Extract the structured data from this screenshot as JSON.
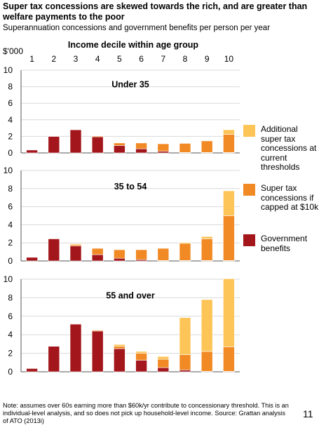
{
  "title": "Super tax concessions are skewed towards the rich, and are greater than welfare payments to the poor",
  "subtitle": "Superannuation concessions and government benefits per person per year",
  "unit_label": "$'000",
  "x_header": "Income decile within age group",
  "footnote": "Note: assumes over 60s earning more than $60k/yr contribute to concessionary threshold. This is an individual-level analysis, and so does not pick up household-level income. Source: Grattan analysis of ATO (2013i)",
  "page_number": "11",
  "colors": {
    "government_benefits": "#A3161B",
    "capped": "#F18A25",
    "additional": "#FDC457",
    "grid": "#d9d9d9",
    "axis": "#555555"
  },
  "legend": [
    {
      "label": "Additional super tax concessions at current thresholds",
      "color": "#FDC457"
    },
    {
      "label": "Super tax concessions if capped at $10k",
      "color": "#F18A25"
    },
    {
      "label": "Government benefits",
      "color": "#A3161B"
    }
  ],
  "chart_data": [
    {
      "type": "bar",
      "stacked": true,
      "title": "Under 35",
      "categories": [
        "1",
        "2",
        "3",
        "4",
        "5",
        "6",
        "7",
        "8",
        "9",
        "10"
      ],
      "ylim": [
        0,
        10
      ],
      "yticks": [
        0,
        2,
        4,
        6,
        8,
        10
      ],
      "series": [
        {
          "name": "Government benefits",
          "values": [
            0.35,
            2.0,
            2.8,
            1.95,
            0.9,
            0.5,
            0.2,
            0.05,
            0.05,
            0.05
          ]
        },
        {
          "name": "Super tax concessions if capped at $10k",
          "values": [
            0.0,
            0.05,
            0.05,
            0.1,
            0.3,
            0.7,
            0.9,
            1.1,
            1.4,
            2.2
          ]
        },
        {
          "name": "Additional super tax concessions at current thresholds",
          "values": [
            0,
            0,
            0,
            0,
            0,
            0,
            0,
            0,
            0,
            0.55
          ]
        }
      ]
    },
    {
      "type": "bar",
      "stacked": true,
      "title": "35 to 54",
      "categories": [
        "1",
        "2",
        "3",
        "4",
        "5",
        "6",
        "7",
        "8",
        "9",
        "10"
      ],
      "ylim": [
        0,
        10
      ],
      "yticks": [
        0,
        2,
        4,
        6,
        8,
        10
      ],
      "series": [
        {
          "name": "Government benefits",
          "values": [
            0.4,
            2.45,
            1.65,
            0.7,
            0.3,
            0.15,
            0.05,
            0.05,
            0.05,
            0.05
          ]
        },
        {
          "name": "Super tax concessions if capped at $10k",
          "values": [
            0.0,
            0.05,
            0.15,
            0.7,
            0.95,
            1.1,
            1.35,
            1.9,
            2.4,
            4.95
          ]
        },
        {
          "name": "Additional super tax concessions at current thresholds",
          "values": [
            0,
            0,
            0.1,
            0.05,
            0.05,
            0.05,
            0.05,
            0.1,
            0.25,
            2.75
          ]
        }
      ]
    },
    {
      "type": "bar",
      "stacked": true,
      "title": "55 and over",
      "categories": [
        "1",
        "2",
        "3",
        "4",
        "5",
        "6",
        "7",
        "8",
        "9",
        "10"
      ],
      "ylim": [
        0,
        10
      ],
      "yticks": [
        0,
        2,
        4,
        6,
        8,
        10
      ],
      "series": [
        {
          "name": "Government benefits",
          "values": [
            0.35,
            2.75,
            5.15,
            4.4,
            2.5,
            1.25,
            0.45,
            0.2,
            0.05,
            0.05
          ]
        },
        {
          "name": "Super tax concessions if capped at $10k",
          "values": [
            0.0,
            0.0,
            0.05,
            0.1,
            0.25,
            0.75,
            0.9,
            1.65,
            2.15,
            2.65
          ]
        },
        {
          "name": "Additional super tax concessions at current thresholds",
          "values": [
            0.0,
            0.0,
            0.0,
            0.05,
            0.2,
            0.2,
            0.3,
            4.0,
            5.6,
            7.35
          ]
        }
      ]
    }
  ]
}
